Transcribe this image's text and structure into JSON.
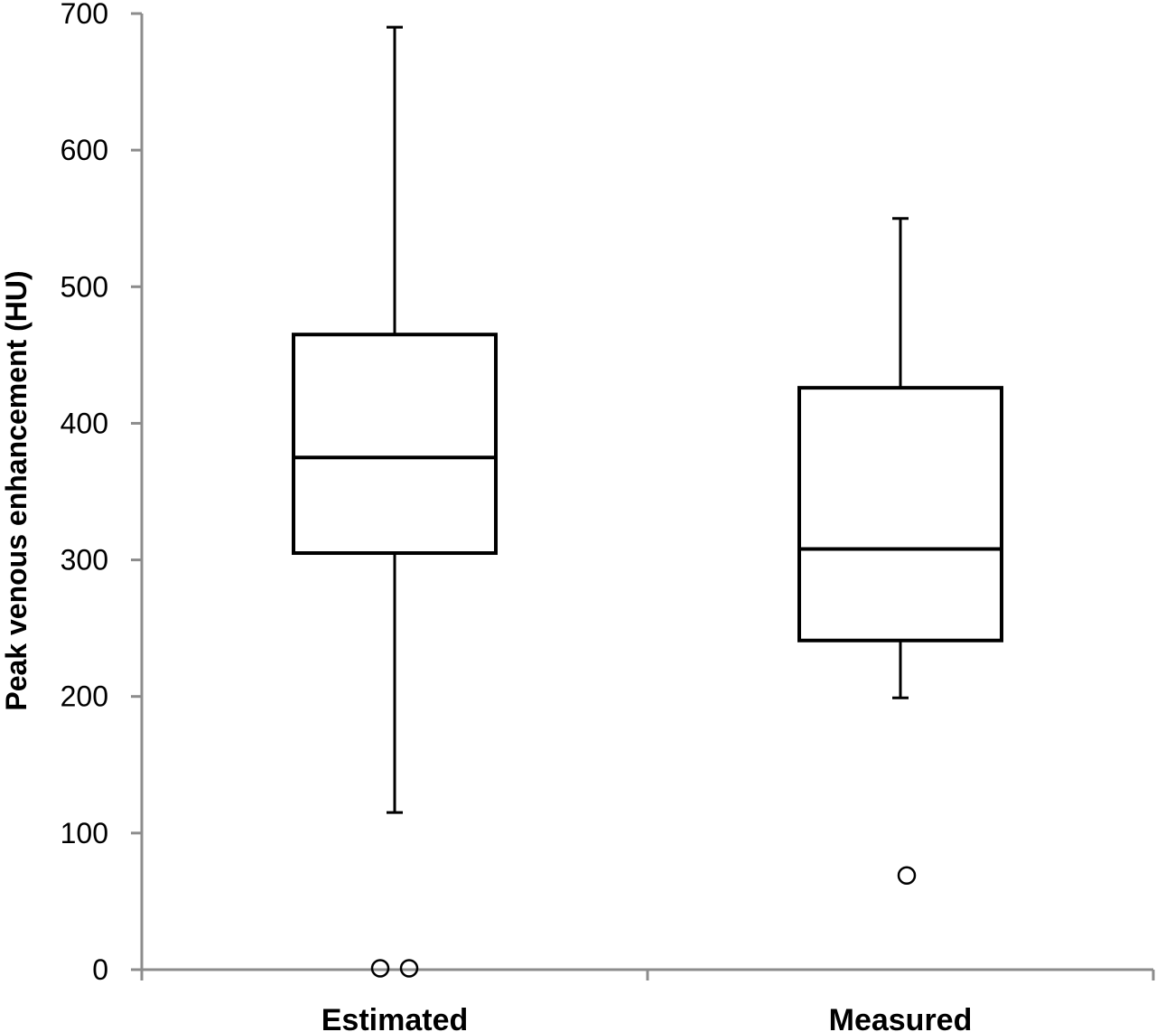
{
  "chart_data": {
    "type": "boxplot",
    "title": "",
    "xlabel": "",
    "ylabel": "Peak venous enhancement (HU)",
    "ylim": [
      0,
      700
    ],
    "yticks": [
      0,
      100,
      200,
      300,
      400,
      500,
      600,
      700
    ],
    "grid": false,
    "legend": "none",
    "categories": [
      "Estimated",
      "Measured"
    ],
    "boxes": [
      {
        "category": "Estimated",
        "whisker_low": 115,
        "q1": 305,
        "median": 375,
        "q3": 465,
        "whisker_high": 690,
        "outliers": [
          1,
          1
        ]
      },
      {
        "category": "Measured",
        "whisker_low": 199,
        "q1": 241,
        "median": 308,
        "q3": 426,
        "whisker_high": 550,
        "outliers": [
          69
        ]
      }
    ],
    "colors": {
      "axis": "#8c8c8c",
      "box_stroke": "#000000",
      "box_fill": "#ffffff"
    }
  }
}
